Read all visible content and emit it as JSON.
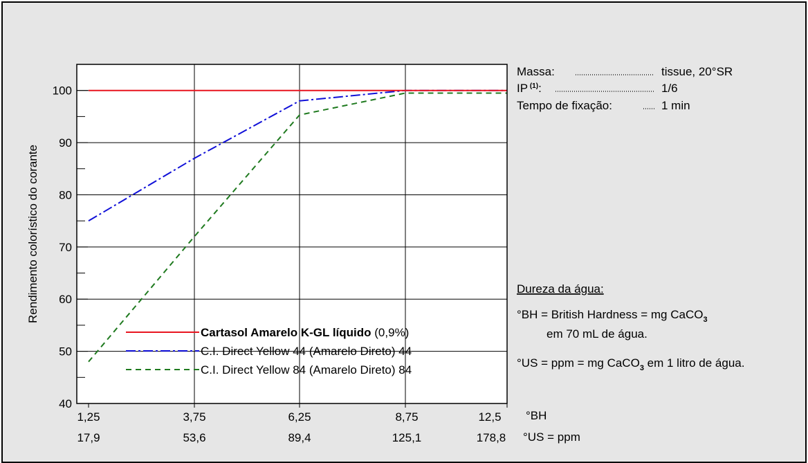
{
  "chart_data": {
    "type": "line",
    "title": "",
    "ylabel": "Rendimento colorístico do corante",
    "ylim": [
      40,
      105
    ],
    "yticks": [
      40,
      50,
      60,
      70,
      80,
      90,
      100
    ],
    "grid": true,
    "x_bh": [
      1.25,
      3.75,
      6.25,
      8.75,
      12.5
    ],
    "xtick_labels_bh": [
      "1,25",
      "3,75",
      "6,25",
      "8,75",
      "12,5"
    ],
    "xtick_labels_us": [
      "17,9",
      "53,6",
      "89,4",
      "125,1",
      "178,8"
    ],
    "x_unit_bh": "°BH",
    "x_unit_us": "°US = ppm",
    "legend_position": "lower-left",
    "series": [
      {
        "name_bold": "Cartasol Amarelo K-GL líquido",
        "name_rest": " (0,9%)",
        "color": "#e8141e",
        "dash": "solid",
        "values": [
          100,
          100,
          100,
          100,
          100
        ]
      },
      {
        "name": "C.I. Direct Yellow 44 (Amarelo Direto) 44",
        "color": "#1010d8",
        "dash": "dashdot",
        "values": [
          75,
          87,
          98,
          100,
          100
        ]
      },
      {
        "name": "C.I. Direct Yellow 84 (Amarelo Direto) 84",
        "color": "#1f7a1f",
        "dash": "dashed",
        "values": [
          48,
          72,
          95.3,
          99.5,
          99.5
        ]
      }
    ]
  },
  "info": {
    "rows": [
      {
        "label": "Massa:",
        "value": "tissue, 20°SR"
      },
      {
        "label": "IP",
        "sup": "(1)",
        "label_suffix": ":",
        "value": "1/6"
      },
      {
        "label": "Tempo de fixação:",
        "value": "1 min"
      }
    ]
  },
  "hardness": {
    "title": "Dureza da água:",
    "bh_line1_pre": "°BH = British Hardness = mg CaCO",
    "bh_sub": "3",
    "bh_line2": "em 70 mL de água.",
    "us_pre": "°US = ppm = mg CaCO",
    "us_sub": "3",
    "us_post": " em 1 litro de água."
  }
}
